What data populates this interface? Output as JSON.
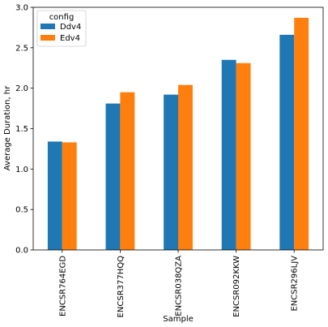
{
  "chart_data": {
    "type": "bar",
    "title": "",
    "xlabel": "Sample",
    "ylabel": "Average Duration, hr",
    "categories": [
      "ENCSR764EGD",
      "ENCSR377HQQ",
      "ENCSR038QZA",
      "ENCSR092KKW",
      "ENCSR296LJV"
    ],
    "series": [
      {
        "name": "Ddv4",
        "color": "#1f77b4",
        "values": [
          1.34,
          1.81,
          1.92,
          2.35,
          2.66
        ]
      },
      {
        "name": "Edv4",
        "color": "#ff7f0e",
        "values": [
          1.33,
          1.95,
          2.04,
          2.31,
          2.87
        ]
      }
    ],
    "ylim": [
      0.0,
      3.0
    ],
    "yticks": [
      "0.0",
      "0.5",
      "1.0",
      "1.5",
      "2.0",
      "2.5",
      "3.0"
    ],
    "grid": false,
    "legend": {
      "title": "config",
      "placement": "top-left"
    }
  }
}
